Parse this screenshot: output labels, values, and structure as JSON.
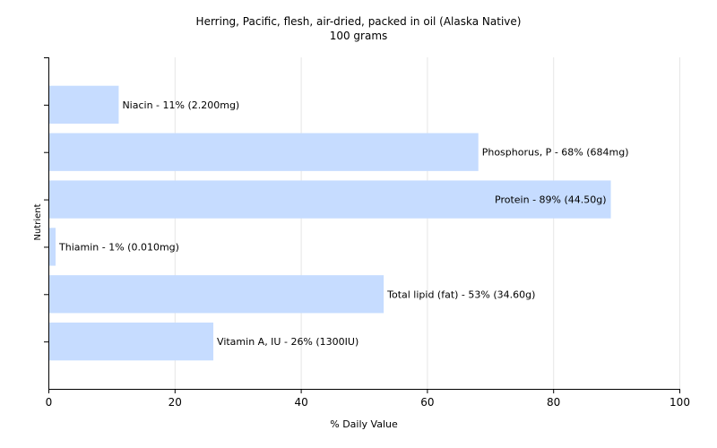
{
  "chart_data": {
    "type": "bar",
    "orientation": "horizontal",
    "title": "Herring, Pacific, flesh, air-dried, packed in oil (Alaska Native)",
    "subtitle": "100 grams",
    "xlabel": "% Daily Value",
    "ylabel": "Nutrient",
    "xlim": [
      0,
      100
    ],
    "xticks": [
      "0",
      "20",
      "40",
      "60",
      "80",
      "100"
    ],
    "grid": true,
    "bar_color": "#c6dcff",
    "grid_color": "#e6e6e6",
    "categories": [
      "Niacin",
      "Phosphorus, P",
      "Protein",
      "Thiamin",
      "Total lipid (fat)",
      "Vitamin A, IU"
    ],
    "values": [
      11,
      68,
      89,
      1,
      53,
      26
    ],
    "labels": [
      "Niacin - 11% (2.200mg)",
      "Phosphorus, P - 68% (684mg)",
      "Protein - 89% (44.50g)",
      "Thiamin - 1% (0.010mg)",
      "Total lipid (fat) - 53% (34.60g)",
      "Vitamin A, IU - 26% (1300IU)"
    ],
    "label_position": [
      "outside",
      "outside",
      "inside",
      "outside",
      "outside",
      "outside"
    ]
  }
}
